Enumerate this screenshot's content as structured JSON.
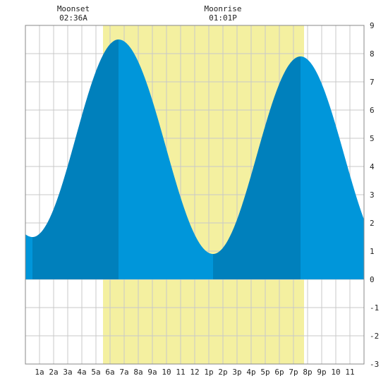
{
  "header": {
    "moonset_label": "Moonset",
    "moonset_time": "02:36A",
    "moonrise_label": "Moonrise",
    "moonrise_time": "01:01P"
  },
  "colors": {
    "background": "#ffffff",
    "grid": "#c8c8c8",
    "daylight": "#f4f0a0",
    "tide_light": "#0096da",
    "tide_dark": "#0080bc",
    "axis_text": "#222222"
  },
  "chart_data": {
    "type": "area",
    "title": "",
    "xlabel": "",
    "ylabel": "",
    "xlim": [
      0,
      24
    ],
    "ylim": [
      -3,
      9
    ],
    "x_ticks": [
      {
        "x": 1,
        "label": "1a"
      },
      {
        "x": 2,
        "label": "2a"
      },
      {
        "x": 3,
        "label": "3a"
      },
      {
        "x": 4,
        "label": "4a"
      },
      {
        "x": 5,
        "label": "5a"
      },
      {
        "x": 6,
        "label": "6a"
      },
      {
        "x": 7,
        "label": "7a"
      },
      {
        "x": 8,
        "label": "8a"
      },
      {
        "x": 9,
        "label": "9a"
      },
      {
        "x": 10,
        "label": "10"
      },
      {
        "x": 11,
        "label": "11"
      },
      {
        "x": 12,
        "label": "12"
      },
      {
        "x": 13,
        "label": "1p"
      },
      {
        "x": 14,
        "label": "2p"
      },
      {
        "x": 15,
        "label": "3p"
      },
      {
        "x": 16,
        "label": "4p"
      },
      {
        "x": 17,
        "label": "5p"
      },
      {
        "x": 18,
        "label": "6p"
      },
      {
        "x": 19,
        "label": "7p"
      },
      {
        "x": 20,
        "label": "8p"
      },
      {
        "x": 21,
        "label": "9p"
      },
      {
        "x": 22,
        "label": "10"
      },
      {
        "x": 23,
        "label": "11"
      }
    ],
    "y_ticks": [
      -3,
      -2,
      -1,
      0,
      1,
      2,
      3,
      4,
      5,
      6,
      7,
      8,
      9
    ],
    "daylight_window": [
      5.5,
      19.75
    ],
    "moonset_hour": 2.6,
    "moonrise_hour": 13.02,
    "extrema": [
      {
        "x": 0.5,
        "y": 1.5,
        "kind": "low"
      },
      {
        "x": 6.6,
        "y": 8.5,
        "kind": "high"
      },
      {
        "x": 13.3,
        "y": 0.9,
        "kind": "low"
      },
      {
        "x": 19.5,
        "y": 7.9,
        "kind": "high"
      }
    ],
    "start": {
      "x": 0,
      "y": 1.6
    },
    "end": {
      "x": 24,
      "y": 2.9
    },
    "grid": true
  }
}
